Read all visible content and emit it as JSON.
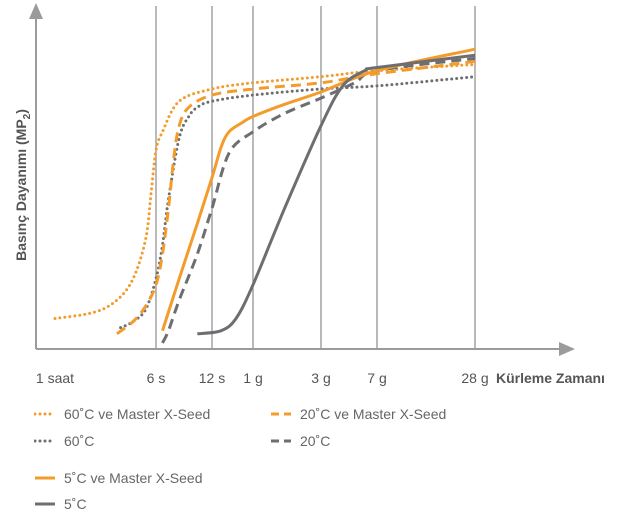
{
  "chart_data": {
    "type": "line",
    "ylabel": "Basınç Dayanımı (MP",
    "ylabel_sub": "2",
    "ylabel_tail": ")",
    "xlabel": "Kürleme Zamanı",
    "x_ticks": [
      "1 saat",
      "6 s",
      "12 s",
      "1 g",
      "3 g",
      "7 g",
      "28 g"
    ],
    "x_tick_hours": [
      1,
      6,
      12,
      24,
      72,
      168,
      672
    ],
    "y_range": [
      0,
      100
    ],
    "grid": "vertical lines at x ticks from 6 s to 28 g",
    "legend_position": "bottom",
    "series": [
      {
        "name": "60˚C ve Master X-Seed",
        "color": "#f39c2b",
        "style": "dotted",
        "x": [
          1,
          2,
          3,
          4,
          5,
          5.5,
          6,
          6.5,
          8,
          12,
          24,
          72,
          168,
          672
        ],
        "y": [
          9,
          11,
          15,
          22,
          35,
          50,
          64,
          70,
          80,
          84,
          86,
          88,
          90,
          92
        ]
      },
      {
        "name": "60˚C",
        "color": "#6d6e71",
        "style": "dotted",
        "x": [
          3.2,
          4,
          5,
          6,
          6.5,
          7,
          8,
          9,
          10,
          12,
          24,
          72,
          168,
          672
        ],
        "y": [
          6,
          8,
          12,
          22,
          33,
          48,
          68,
          75,
          78,
          80,
          82,
          84,
          85,
          88
        ]
      },
      {
        "name": "20˚C ve Master X-Seed",
        "color": "#f39c2b",
        "style": "dashed",
        "x": [
          3,
          4,
          5,
          6,
          6.5,
          7,
          7.5,
          8,
          9,
          12,
          24,
          72,
          168,
          672
        ],
        "y": [
          4,
          8,
          13,
          20,
          30,
          45,
          62,
          72,
          78,
          82,
          84,
          86,
          89,
          93
        ]
      },
      {
        "name": "20˚C",
        "color": "#6d6e71",
        "style": "dashed",
        "x": [
          6.5,
          7,
          8,
          10,
          12,
          16,
          24,
          40,
          72,
          120,
          168,
          672
        ],
        "y": [
          1,
          5,
          15,
          30,
          45,
          63,
          70,
          76,
          81,
          86,
          90,
          94
        ]
      },
      {
        "name": "5˚C ve Master X-Seed",
        "color": "#f39c2b",
        "style": "solid",
        "x": [
          6.5,
          8,
          10,
          12,
          14,
          16,
          20,
          24,
          40,
          72,
          168,
          672
        ],
        "y": [
          5,
          22,
          40,
          55,
          65,
          70,
          73,
          75,
          79,
          83,
          90,
          97
        ]
      },
      {
        "name": "5˚C",
        "color": "#6d6e71",
        "style": "solid",
        "x": [
          10,
          14,
          18,
          24,
          40,
          72,
          100,
          140,
          168,
          672
        ],
        "y": [
          4,
          5,
          9,
          20,
          45,
          72,
          85,
          90,
          91,
          95
        ]
      }
    ]
  }
}
